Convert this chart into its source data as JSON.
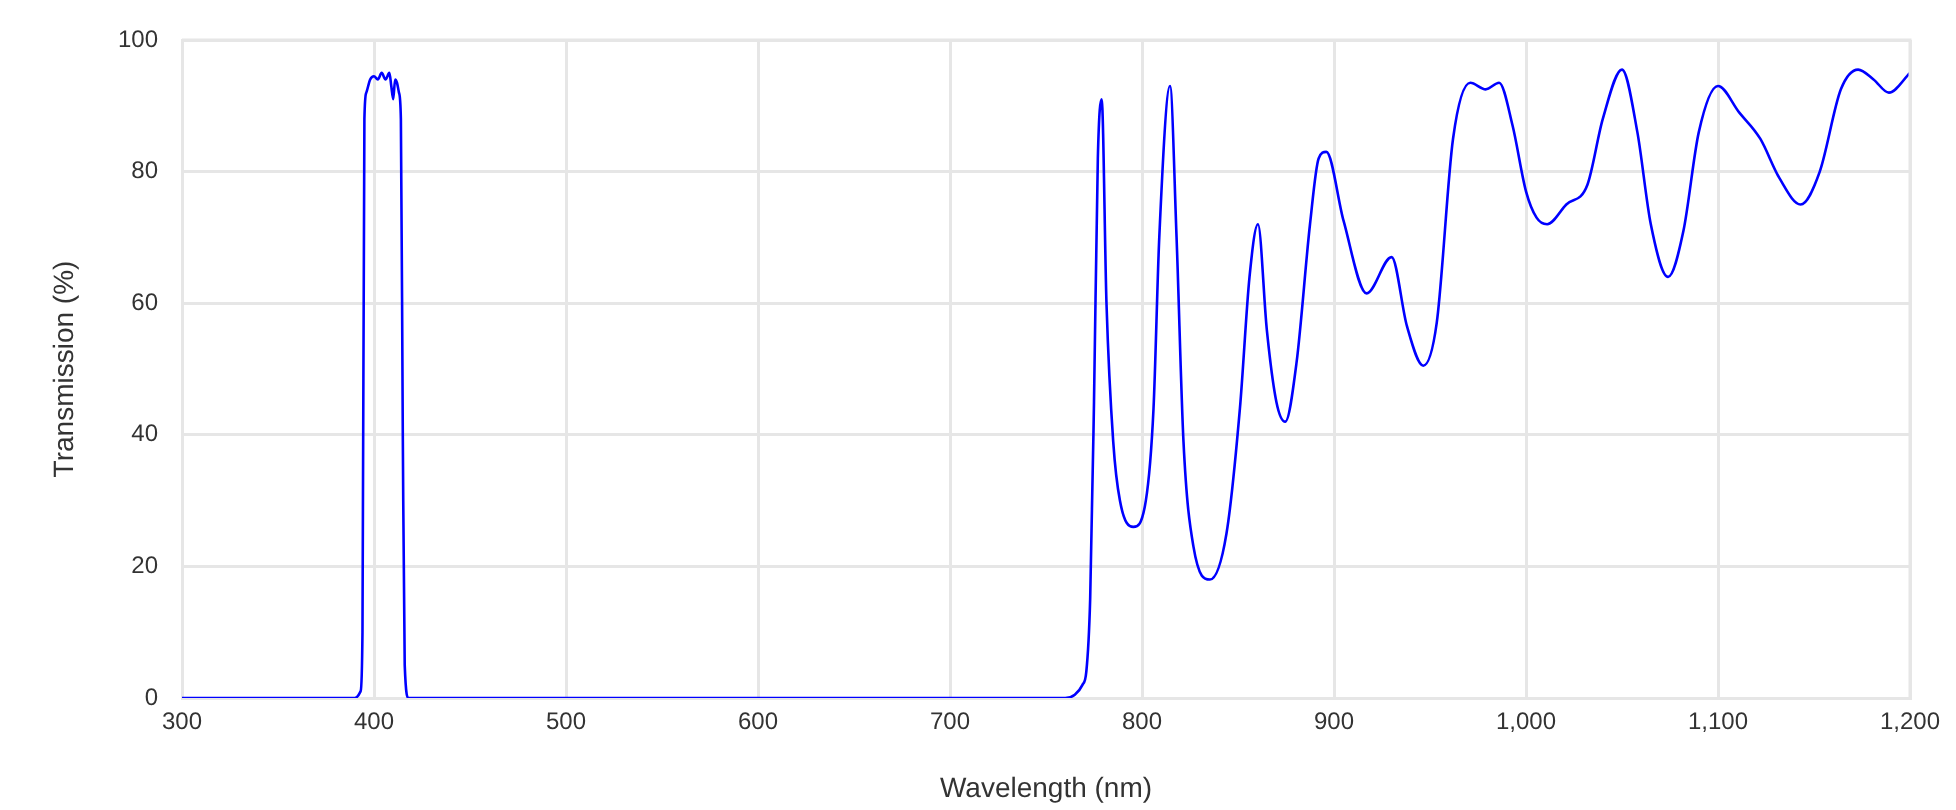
{
  "chart_data": {
    "type": "line",
    "xlabel": "Wavelength (nm)",
    "ylabel": "Transmission (%)",
    "x": [
      300,
      390,
      393,
      394,
      395,
      396,
      398,
      400,
      402,
      404,
      406,
      408,
      409,
      410,
      411,
      412,
      413,
      414,
      415,
      416,
      418,
      600,
      760,
      765,
      769,
      771,
      773,
      775,
      777,
      779,
      781.5,
      785,
      788.5,
      795.5,
      802,
      806,
      809,
      814.6,
      818,
      821.6,
      826.8,
      835.4,
      844,
      851,
      856,
      860.4,
      865,
      870,
      874.6,
      880.5,
      887.5,
      892,
      896,
      905,
      917,
      930,
      938,
      946.5,
      953.5,
      962,
      971,
      979,
      986,
      993,
      1000,
      1005.5,
      1011,
      1021,
      1032,
      1040,
      1050,
      1058,
      1065,
      1074,
      1082,
      1090,
      1100,
      1111,
      1122,
      1132,
      1143,
      1153,
      1164,
      1173,
      1181,
      1189,
      1200
    ],
    "series": [
      {
        "color": "#0000ff",
        "values": [
          0,
          0,
          1,
          10,
          88,
          92,
          94,
          94.5,
          94,
          95,
          94,
          95,
          93,
          91,
          94,
          93.5,
          92,
          88,
          40,
          5,
          0,
          0,
          0,
          0.5,
          2,
          4,
          15,
          45,
          82,
          91,
          60,
          39,
          30,
          26,
          30,
          44,
          70,
          93,
          70,
          39,
          23,
          18,
          25,
          44,
          64,
          72,
          56,
          45,
          42,
          51,
          72,
          82,
          83,
          72.5,
          61.5,
          67,
          56.5,
          50.5,
          57,
          85,
          93.5,
          92.5,
          93.5,
          87,
          77,
          73,
          72,
          75,
          78,
          88,
          95.5,
          86,
          72,
          64,
          71,
          86,
          93,
          89,
          85,
          79,
          75,
          80,
          92.5,
          95.5,
          94,
          92,
          95
        ]
      }
    ],
    "xlim": [
      300,
      1200
    ],
    "xticks": [
      300,
      400,
      500,
      600,
      700,
      800,
      900,
      {
        "value": 1000,
        "label": "1,000"
      },
      {
        "value": 1100,
        "label": "1,100"
      },
      {
        "value": 1200,
        "label": "1,200"
      }
    ],
    "ylim": [
      0,
      100
    ],
    "yticks": [
      0,
      20,
      40,
      60,
      80,
      100
    ],
    "grid": true,
    "marker": "none",
    "line_style": "solid"
  }
}
